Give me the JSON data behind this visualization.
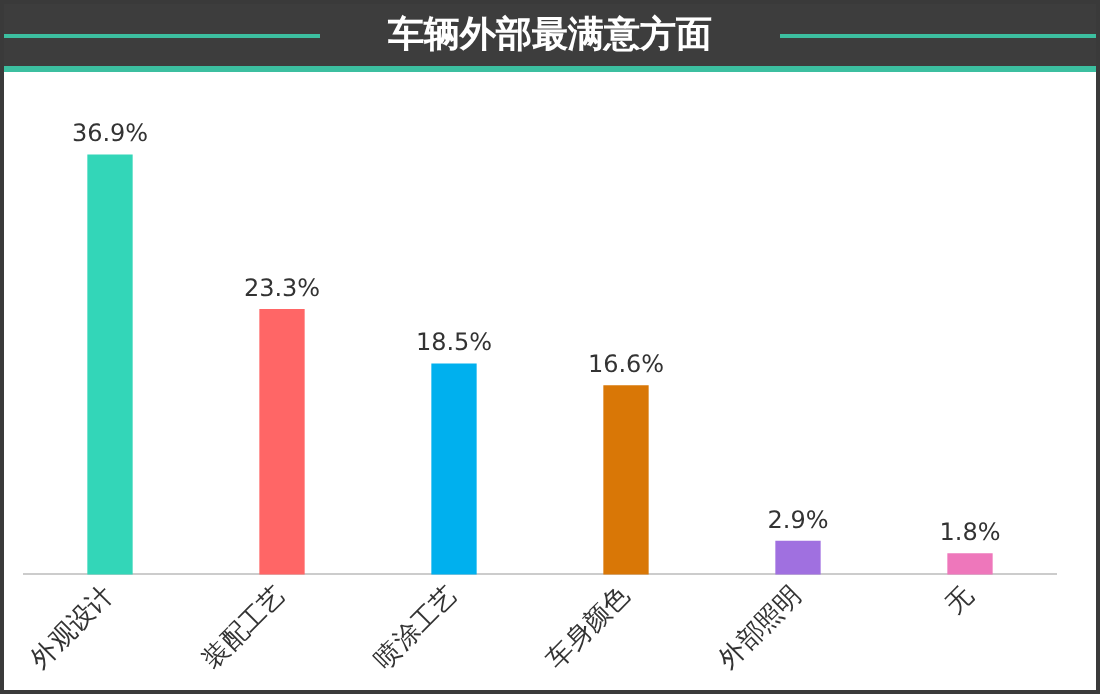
{
  "chart_data": {
    "type": "bar",
    "title": "车辆外部最满意方面",
    "categories": [
      "外观设计",
      "装配工艺",
      "喷涂工艺",
      "车身颜色",
      "外部照明",
      "无"
    ],
    "values": [
      36.9,
      23.3,
      18.5,
      16.6,
      2.9,
      1.8
    ],
    "colors": [
      "#33d6b8",
      "#ff6666",
      "#00b0ee",
      "#d97706",
      "#a070e0",
      "#ee77bb"
    ],
    "value_labels": [
      "36.9%",
      "23.3%",
      "18.5%",
      "16.6%",
      "2.9%",
      "1.8%"
    ],
    "tick_labels": "x",
    "grid": false,
    "legend": false
  }
}
